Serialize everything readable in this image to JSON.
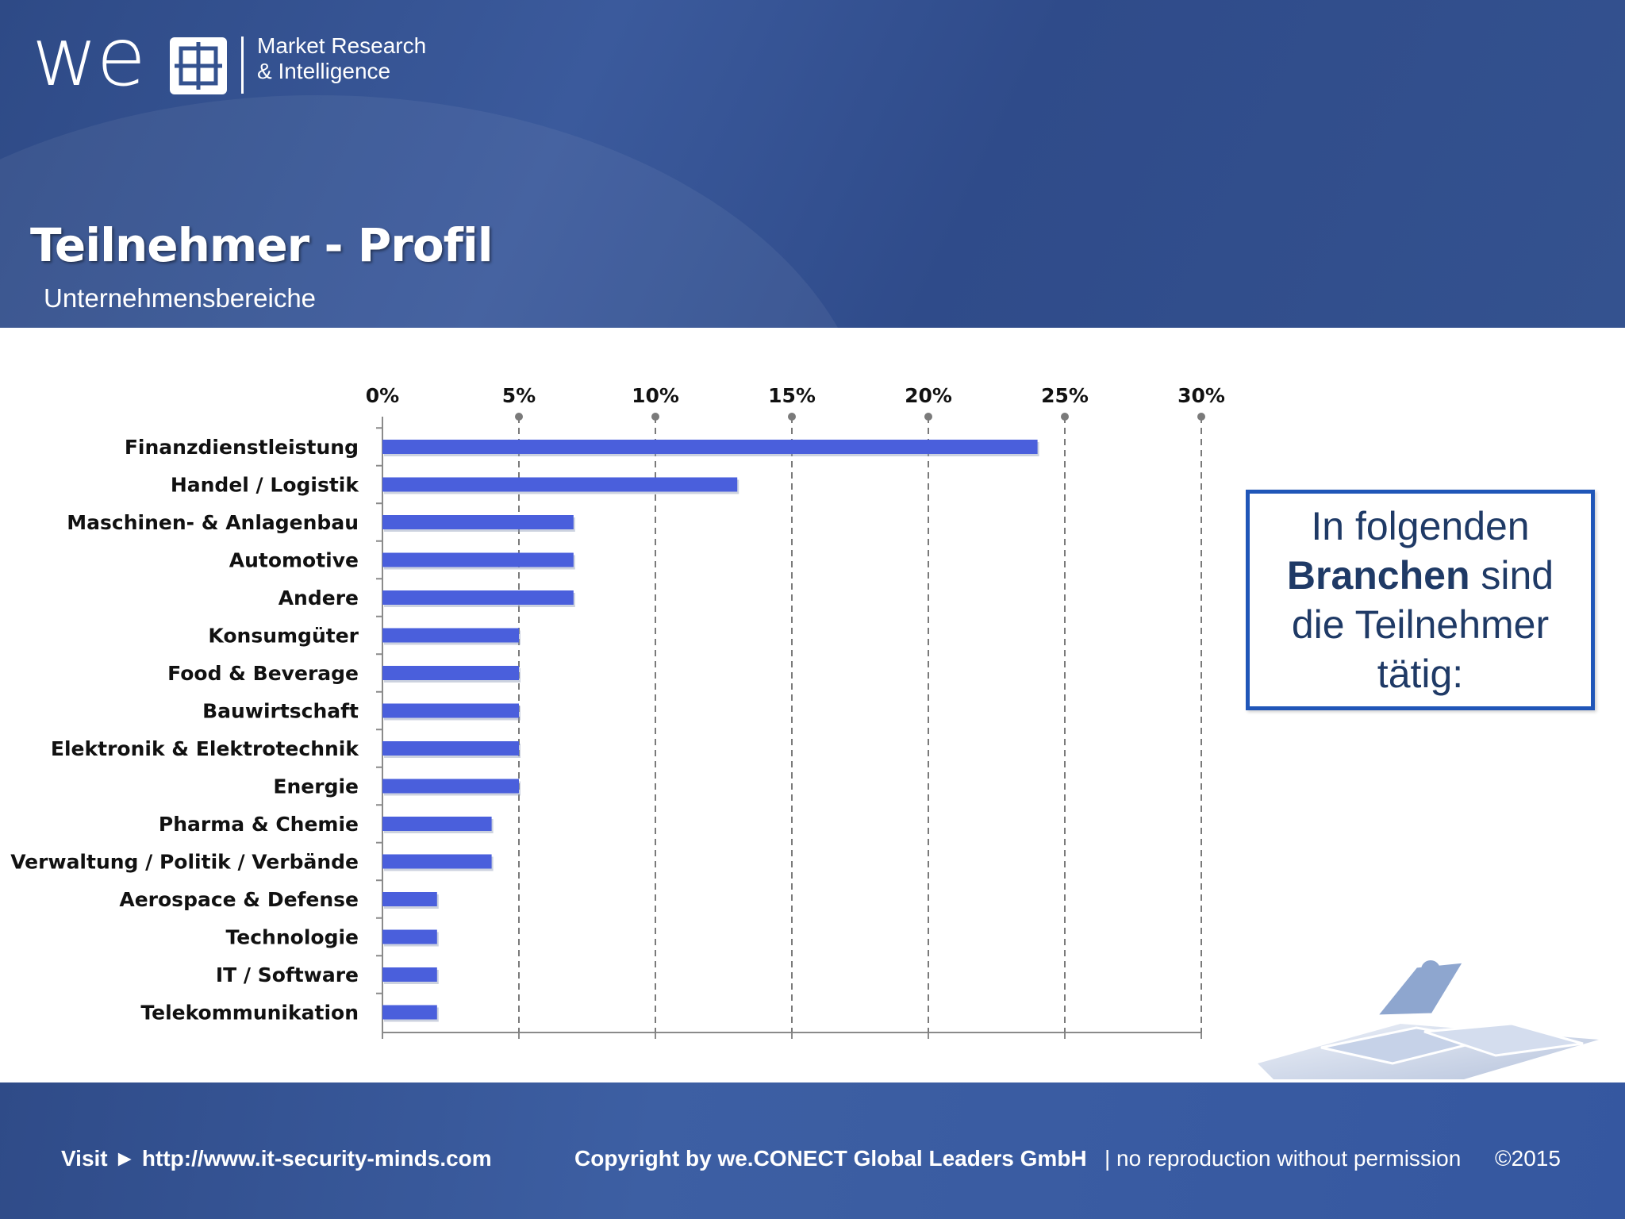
{
  "logo": {
    "mark": "we",
    "line1": "Market Research",
    "line2": "& Intelligence"
  },
  "header": {
    "title": "Teilnehmer - Profil",
    "subtitle": "Unternehmensbereiche"
  },
  "chart_data": {
    "type": "bar",
    "orientation": "horizontal",
    "categories": [
      "Finanzdienstleistung",
      "Handel / Logistik",
      "Maschinen- & Anlagenbau",
      "Automotive",
      "Andere",
      "Konsumgüter",
      "Food & Beverage",
      "Bauwirtschaft",
      "Elektronik & Elektrotechnik",
      "Energie",
      "Pharma & Chemie",
      "Verwaltung / Politik / Verbände",
      "Aerospace & Defense",
      "Technologie",
      "IT / Software",
      "Telekommunikation"
    ],
    "values": [
      24,
      13,
      7,
      7,
      7,
      5,
      5,
      5,
      5,
      5,
      4,
      4,
      2,
      2,
      2,
      2
    ],
    "xlim": [
      0,
      30
    ],
    "xticks": [
      "0%",
      "5%",
      "10%",
      "15%",
      "20%",
      "25%",
      "30%"
    ],
    "xtick_values": [
      0,
      5,
      10,
      15,
      20,
      25,
      30
    ],
    "grid": "vertical dashed",
    "bar_color": "#4a5fdc",
    "grid_color": "#7a7a7a"
  },
  "callout": {
    "line1": "In folgenden",
    "bold": "Branchen",
    "line2_rest": " sind",
    "line3": "die Teilnehmer",
    "line4": "tätig:"
  },
  "footer": {
    "visit": "Visit ► http://www.it-security-minds.com",
    "copyright": "Copyright by we.CONECT Global Leaders GmbH",
    "norepro": "| no reproduction without permission",
    "year": "©2015"
  },
  "colors": {
    "header_bg": "#34528f",
    "footer_bg": "#3557a0",
    "callout_border": "#2056b8",
    "callout_text": "#1f3a66"
  }
}
